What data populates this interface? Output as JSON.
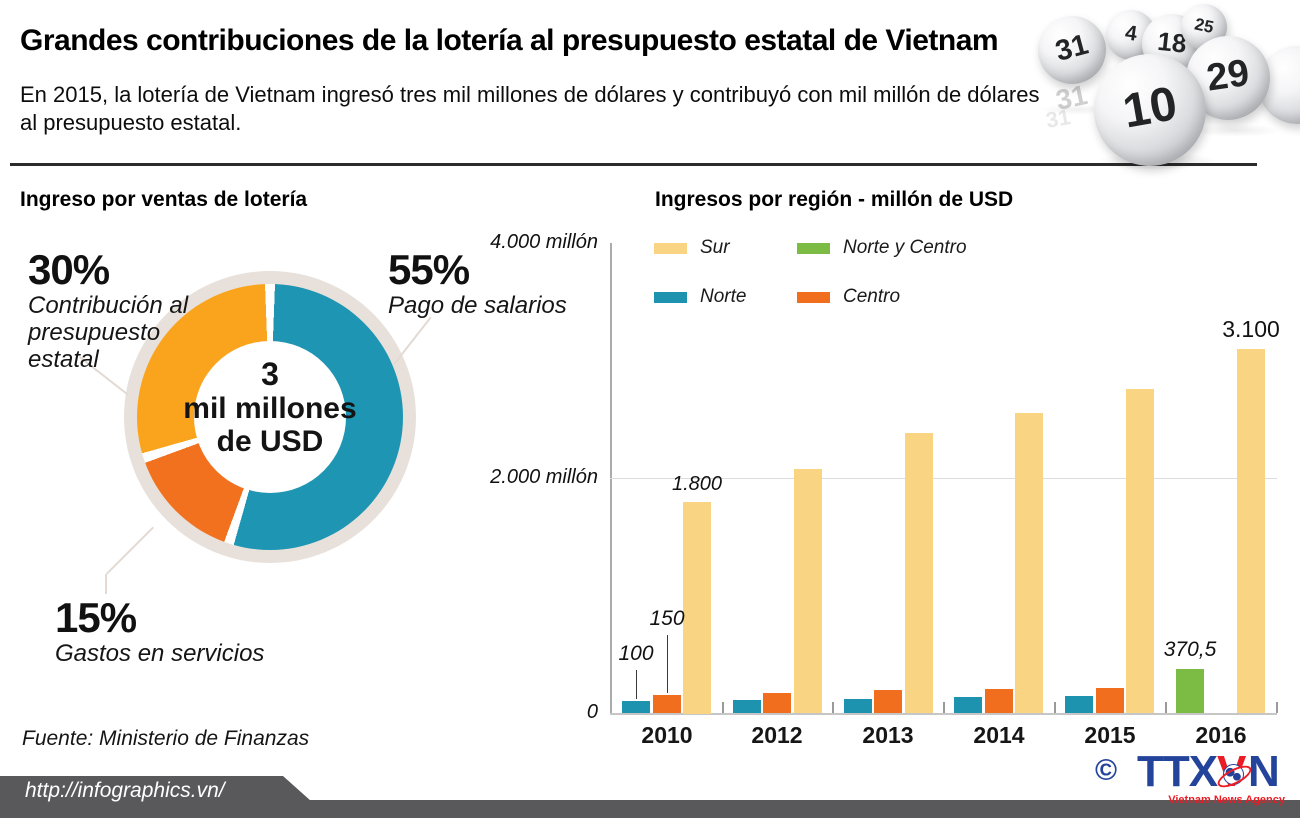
{
  "header": {
    "title": "Grandes contribuciones de la lotería al presupuesto estatal de Vietnam",
    "subtitle_line1": "En 2015, la lotería de Vietnam ingresó tres mil millones de dólares y contribuyó con mil millón de dólares",
    "subtitle_line2": "al presupuesto estatal."
  },
  "balls": {
    "numbers": [
      "31",
      "4",
      "18",
      "25",
      "29",
      "10"
    ]
  },
  "donut_section": {
    "heading": "Ingreso por ventas de lotería",
    "budget_pct": "30%",
    "budget_line1": "Contribución al",
    "budget_line2": "presupuesto",
    "budget_line3": "estatal",
    "salaries_pct": "55%",
    "salaries_label": "Pago de salarios",
    "services_pct": "15%",
    "services_label": "Gastos en servicios",
    "center_line1": "3",
    "center_line2": "mil millones",
    "center_line3": "de USD"
  },
  "bars_section": {
    "heading": "Ingresos por región - millón de USD"
  },
  "source": "Fuente: Ministerio de Finanzas",
  "footer": {
    "url": "http://infographics.vn/",
    "copyright_symbol": "©",
    "logo_part1": "TTX",
    "logo_part2": "V",
    "logo_part3": "N",
    "logo_subtitle": "Vietnam News Agency"
  },
  "colors": {
    "sur": "#F9D583",
    "norte": "#1D93B0",
    "centro": "#F26E1F",
    "norte_y_centro": "#7CBB44",
    "donut_teal": "#1E95B2",
    "donut_amber": "#FAA41E",
    "donut_orange": "#F2711F",
    "footer_gray": "#59595B",
    "logo_blue": "#24449C",
    "logo_red": "#EC1C24"
  },
  "chart_data": [
    {
      "type": "pie",
      "title": "Ingreso por ventas de lotería",
      "center_label": "3 mil millones de USD",
      "direction": "clockwise",
      "start_angle_deg": 0,
      "slices": [
        {
          "label": "Pago de salarios",
          "pct": 55,
          "color": "#1E95B2"
        },
        {
          "label": "Gastos en servicios",
          "pct": 15,
          "color": "#F2711F"
        },
        {
          "label": "Contribución al presupuesto estatal",
          "pct": 30,
          "color": "#FAA41E"
        }
      ]
    },
    {
      "type": "bar",
      "title": "Ingresos por región - millón de USD",
      "categories": [
        "2010",
        "2012",
        "2013",
        "2014",
        "2015",
        "2016"
      ],
      "series": [
        {
          "name": "Norte",
          "color": "#1D93B0",
          "values": [
            100,
            110,
            120,
            135,
            145,
            null
          ]
        },
        {
          "name": "Centro",
          "color": "#F26E1F",
          "values": [
            150,
            170,
            195,
            205,
            215,
            null
          ]
        },
        {
          "name": "Norte y Centro",
          "color": "#7CBB44",
          "values": [
            null,
            null,
            null,
            null,
            null,
            370.5
          ]
        },
        {
          "name": "Sur",
          "color": "#F9D583",
          "values": [
            1800,
            2080,
            2380,
            2550,
            2760,
            3100
          ]
        }
      ],
      "ylim": [
        0,
        4000
      ],
      "yticks": [
        {
          "value": 4000,
          "label": "4.000 millón"
        },
        {
          "value": 2000,
          "label": "2.000 millón"
        },
        {
          "value": 0,
          "label": "0"
        }
      ],
      "legend": [
        {
          "label": "Sur",
          "color": "#F9D583"
        },
        {
          "label": "Norte y Centro",
          "color": "#7CBB44"
        },
        {
          "label": "Norte",
          "color": "#1D93B0"
        },
        {
          "label": "Centro",
          "color": "#F26E1F"
        }
      ],
      "annotations": [
        {
          "text": "100",
          "category": "2010",
          "series": "Norte",
          "leader": true
        },
        {
          "text": "150",
          "category": "2010",
          "series": "Centro",
          "leader": true
        },
        {
          "text": "1.800",
          "category": "2010",
          "series": "Sur",
          "leader": false
        },
        {
          "text": "370,5",
          "category": "2016",
          "series": "Norte y Centro",
          "leader": false
        },
        {
          "text": "3.100",
          "category": "2016",
          "series": "Sur",
          "leader": false
        }
      ]
    }
  ]
}
